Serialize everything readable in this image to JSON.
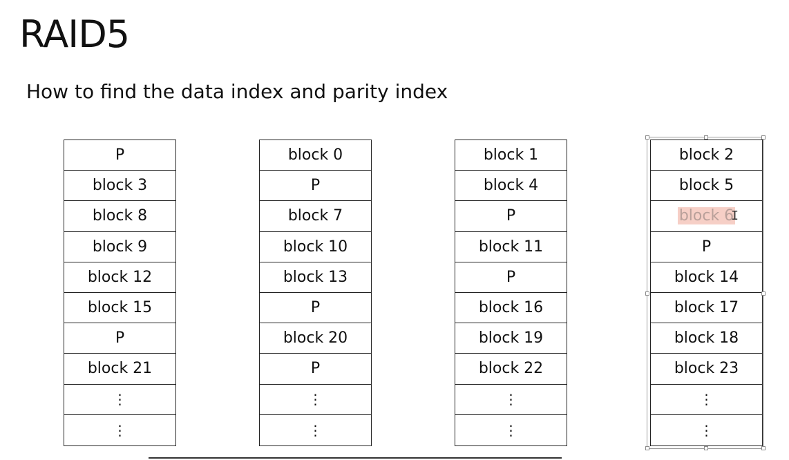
{
  "slide": {
    "title": "RAID5",
    "subtitle": "How to find the data index and parity index"
  },
  "disks": [
    {
      "cells": [
        "P",
        "block 3",
        "block 8",
        "block 9",
        "block 12",
        "block 15",
        "P",
        "block 21",
        "⋮",
        "⋮"
      ]
    },
    {
      "cells": [
        "block 0",
        "P",
        "block 7",
        "block 10",
        "block 13",
        "P",
        "block 20",
        "P",
        "⋮",
        "⋮"
      ]
    },
    {
      "cells": [
        "block 1",
        "block 4",
        "P",
        "block 11",
        "P",
        "block 16",
        "block 19",
        "block 22",
        "⋮",
        "⋮"
      ]
    },
    {
      "cells": [
        "block 2",
        "block 5",
        "block 6",
        "P",
        "block 14",
        "block 17",
        "block 18",
        "block 23",
        "⋮",
        "⋮"
      ]
    }
  ],
  "selection": {
    "selected_disk_index": 3,
    "highlighted_cell_index": 2,
    "highlight_color": "#f6cfc6"
  },
  "cursor": {
    "icon": "text-cursor-icon"
  }
}
